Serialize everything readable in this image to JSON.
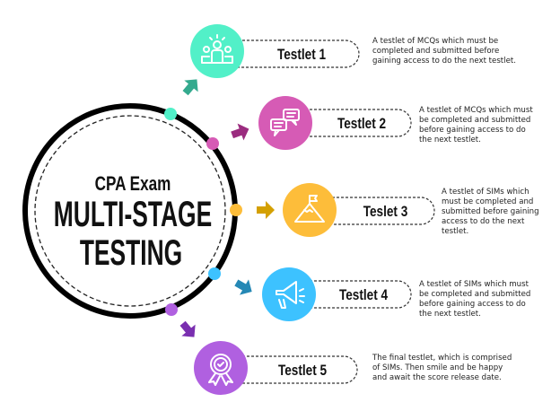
{
  "center": {
    "line1": "CPA Exam",
    "line2": "MULTI-STAGE",
    "line3": "TESTING"
  },
  "testlets": [
    {
      "label": "Testlet 1",
      "icon": "team-icon",
      "color": "#52f0c8",
      "arrow_color": "#34aa8e",
      "description": [
        "A testlet of MCQs which must be",
        "completed and submitted before",
        "gaining access to do the next testlet."
      ]
    },
    {
      "label": "Testlet 2",
      "icon": "chat-bubbles-icon",
      "color": "#d65bb5",
      "arrow_color": "#9b2c7f",
      "description": [
        "A testlet of MCQs which must",
        "be completed and submitted",
        "before gaining access to do",
        "the next testlet."
      ]
    },
    {
      "label": "Teslet 3",
      "icon": "mountain-flag-icon",
      "color": "#fdbd3a",
      "arrow_color": "#d4a000",
      "description": [
        "A testlet of SIMs which",
        "must be completed and",
        "submitted before gaining",
        "access to do the next",
        "testlet."
      ]
    },
    {
      "label": "Testlet 4",
      "icon": "megaphone-icon",
      "color": "#3dc2ff",
      "arrow_color": "#2588b5",
      "description": [
        "A testlet of SIMs which must",
        "be completed and submitted",
        "before gaining access to do",
        "the next testlet."
      ]
    },
    {
      "label": "Testlet 5",
      "icon": "award-badge-icon",
      "color": "#b060e0",
      "arrow_color": "#7a2fb0",
      "description": [
        "The final testlet, which is comprised",
        "of SIMs. Then smile and be happy",
        "and await the score release date."
      ]
    }
  ]
}
